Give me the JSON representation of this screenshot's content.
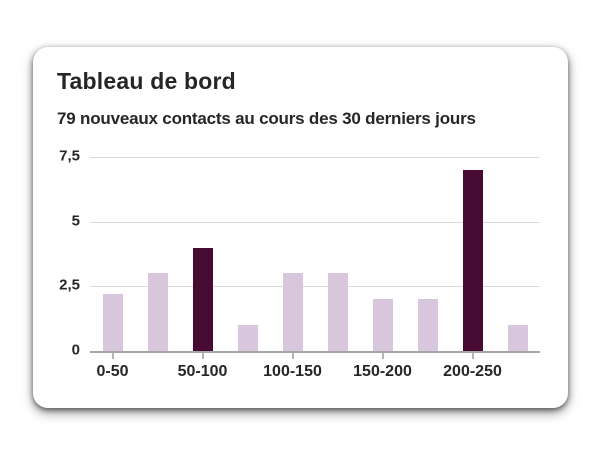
{
  "card": {
    "title": "Tableau de bord",
    "subtitle": "79 nouveaux contacts au cours des 30 derniers jours"
  },
  "chart_data": {
    "type": "bar",
    "title": "Tableau de bord",
    "subtitle": "79 nouveaux contacts au cours des 30 derniers jours",
    "values": [
      2.2,
      3,
      4,
      1,
      3,
      3,
      2,
      2,
      7,
      1
    ],
    "highlighted_indices": [
      2,
      8
    ],
    "x_tick_labels": [
      "0-50",
      "50-100",
      "100-150",
      "150-200",
      "200-250"
    ],
    "x_tick_bar_indices": [
      0,
      2,
      4,
      6,
      8
    ],
    "y_tick_labels": [
      "7,5",
      "5",
      "2,5",
      "0"
    ],
    "y_tick_values": [
      7.5,
      5,
      2.5,
      0
    ],
    "ylim": [
      0,
      7.5
    ],
    "grid": true,
    "legend": false,
    "xlabel": "",
    "ylabel": "",
    "colors": {
      "bar_light": "#d8c6dd",
      "bar_dark": "#470b33",
      "gridline": "#d9d9d9",
      "axis": "#a6a6a6",
      "tick": "#b3b3b3",
      "text": "#262626",
      "card_background": "#ffffff"
    }
  }
}
